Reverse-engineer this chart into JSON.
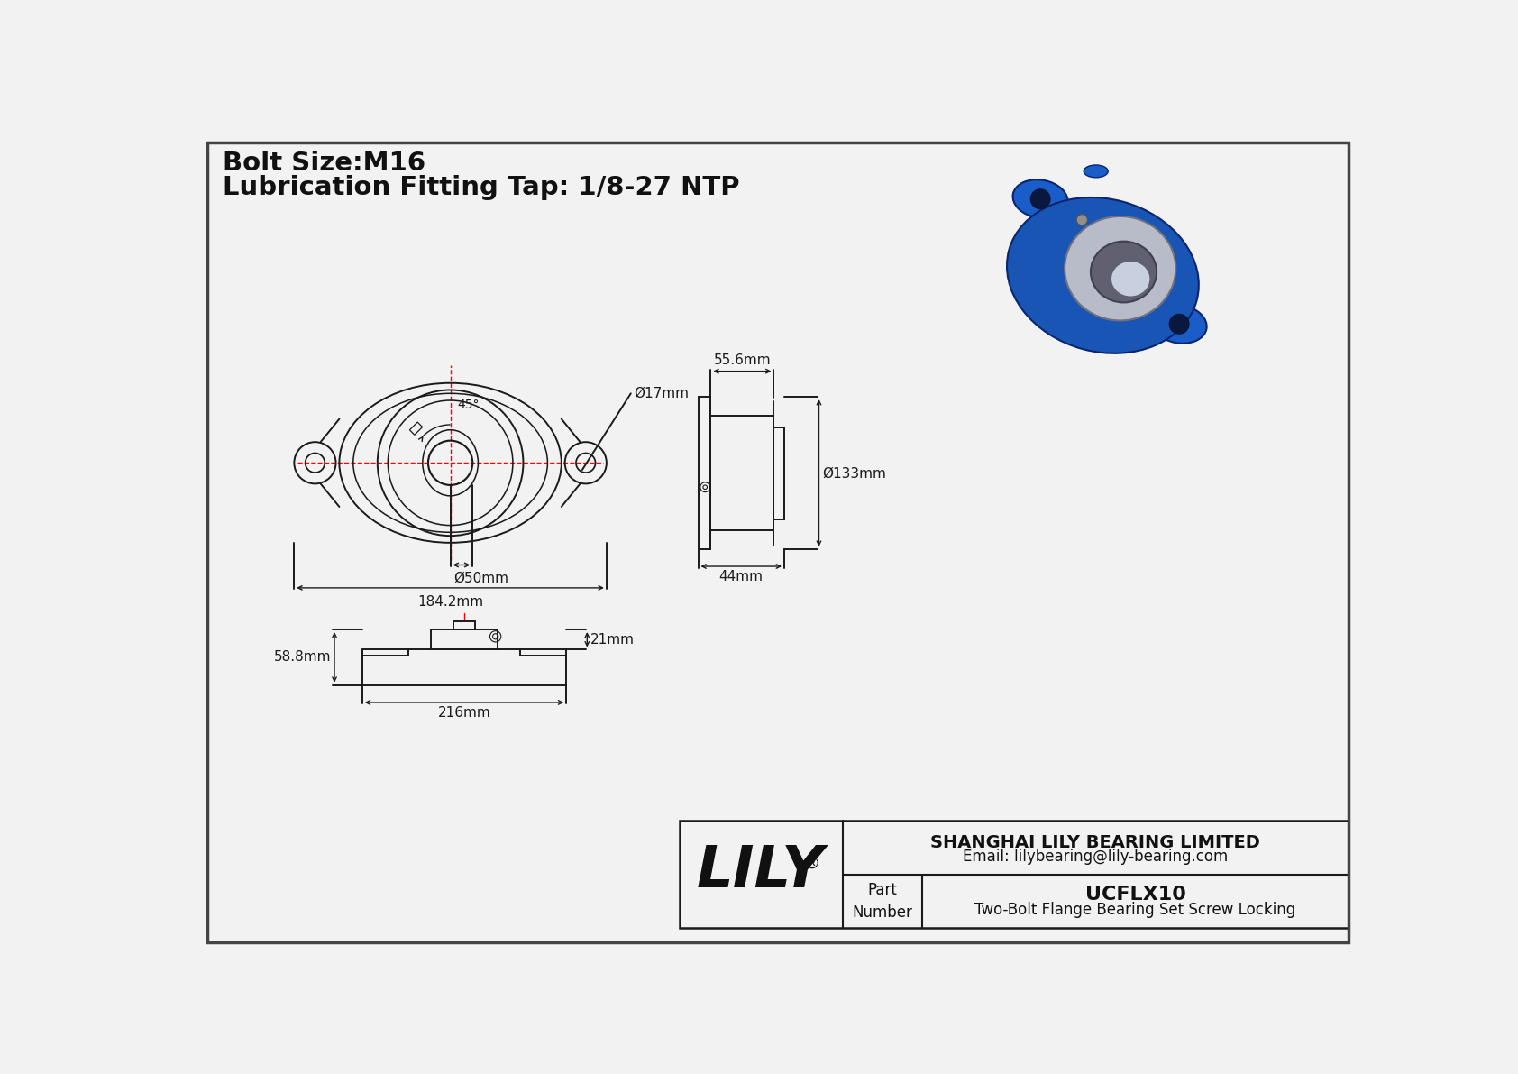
{
  "bg_color": "#f2f2f2",
  "line_color": "#1a1a1a",
  "dim_color": "#1a1a1a",
  "red_color": "#ff0000",
  "title_line1": "Bolt Size:M16",
  "title_line2": "Lubrication Fitting Tap: 1/8-27 NTP",
  "dim_17mm": "Ø17mm",
  "dim_50mm": "Ø50mm",
  "dim_184mm": "184.2mm",
  "dim_45deg": "45°",
  "dim_55mm": "55.6mm",
  "dim_133mm": "Ø133mm",
  "dim_44mm": "44mm",
  "dim_21mm": "21mm",
  "dim_58mm": "58.8mm",
  "dim_216mm": "216mm",
  "company": "LILY",
  "company_reg": "®",
  "company_full": "SHANGHAI LILY BEARING LIMITED",
  "company_email": "Email: lilybearing@lily-bearing.com",
  "part_label1": "Part",
  "part_label2": "Number",
  "part_number": "UCFLX10",
  "part_desc": "Two-Bolt Flange Bearing Set Screw Locking"
}
